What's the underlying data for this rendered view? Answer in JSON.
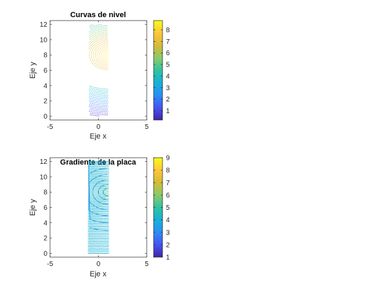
{
  "figure": {
    "background": "#ffffff",
    "axis_color": "#262626",
    "colormap": "parula",
    "colormap_stops": [
      "#3e26a8",
      "#4653f1",
      "#2b8ef5",
      "#16b1d8",
      "#2fc3a0",
      "#8bca67",
      "#d5bb37",
      "#fcc73c",
      "#f9fb15"
    ]
  },
  "chart_data": [
    {
      "type": "contour",
      "title": "Curvas de nivel",
      "xlabel": "Eje x",
      "ylabel": "Eje y",
      "xlim": [
        -5,
        5
      ],
      "ylim": [
        -0.5,
        12.5
      ],
      "xticks": [
        "-5",
        "0",
        "5"
      ],
      "yticks": [
        "0",
        "2",
        "4",
        "6",
        "8",
        "10",
        "12"
      ],
      "x_range": [
        -1,
        1
      ],
      "y_range": [
        0,
        12
      ],
      "hot_spot": [
        1,
        8
      ],
      "level_range": [
        0.2,
        8.8
      ],
      "level_count": 40,
      "colorbar": {
        "ticks": [
          "1",
          "2",
          "3",
          "4",
          "5",
          "6",
          "7",
          "8"
        ],
        "range": [
          0.2,
          8.8
        ]
      }
    },
    {
      "type": "contour",
      "title": "Gradiente de la placa",
      "xlabel": "Eje x",
      "ylabel": "Eje y",
      "xlim": [
        -5,
        5
      ],
      "ylim": [
        -0.5,
        12.5
      ],
      "xticks": [
        "-5",
        "0",
        "5"
      ],
      "yticks": [
        "0",
        "2",
        "4",
        "6",
        "8",
        "10",
        "12"
      ],
      "x_range": [
        -1,
        1
      ],
      "y_range": [
        0,
        12
      ],
      "hot_spot": [
        1,
        8
      ],
      "quiver_grid": [
        16,
        56
      ],
      "colorbar": {
        "ticks": [
          "1",
          "2",
          "3",
          "4",
          "5",
          "6",
          "7",
          "8",
          "9"
        ],
        "range": [
          1,
          9
        ]
      }
    }
  ]
}
